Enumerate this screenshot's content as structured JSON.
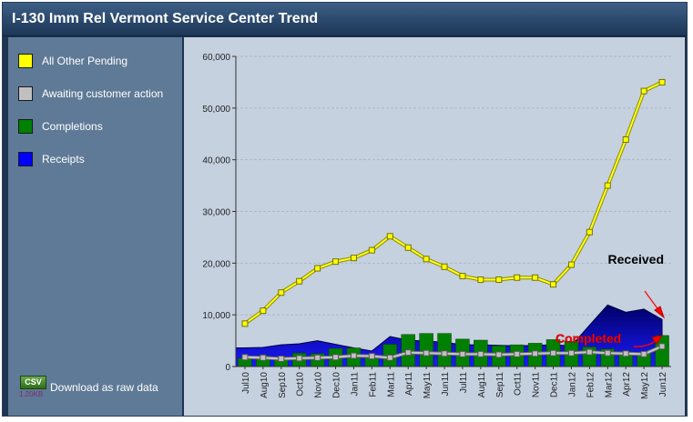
{
  "title": "I-130 Imm Rel Vermont Service Center Trend",
  "legend": [
    {
      "label": "All Other Pending",
      "color": "#ffff00"
    },
    {
      "label": "Awaiting customer action",
      "color": "#c0c0c0"
    },
    {
      "label": "Completions",
      "color": "#008000"
    },
    {
      "label": "Receipts",
      "color": "#0000ff"
    }
  ],
  "download": {
    "badge": "CSV",
    "size": "1.20KB",
    "label": "Download as raw data",
    "icon": "csv-file-icon"
  },
  "annotations": {
    "received": "Received",
    "completed": "Completed",
    "received_color": "#000000",
    "completed_color": "#ff0000"
  },
  "chart_data": {
    "type": "line",
    "categories": [
      "Jul10",
      "Aug10",
      "Sep10",
      "Oct10",
      "Nov10",
      "Dec10",
      "Jan11",
      "Feb11",
      "Mar11",
      "Apr11",
      "May11",
      "Jun11",
      "Jul11",
      "Aug11",
      "Sep11",
      "Oct11",
      "Nov11",
      "Dec11",
      "Jan12",
      "Feb12",
      "Mar12",
      "Apr12",
      "May12",
      "Jun12"
    ],
    "ylim": [
      0,
      60000
    ],
    "yticks": [
      "0",
      "10,000",
      "20,000",
      "30,000",
      "40,000",
      "50,000",
      "60,000"
    ],
    "grid": true,
    "series": [
      {
        "name": "All Other Pending",
        "type": "line",
        "color": "#ffff00",
        "values": [
          8300,
          10800,
          14300,
          16500,
          19000,
          20300,
          21000,
          22500,
          25200,
          23000,
          20800,
          19300,
          17500,
          16800,
          16800,
          17200,
          17200,
          15900,
          19700,
          26000,
          35000,
          43900,
          53300,
          55000
        ]
      },
      {
        "name": "Awaiting customer action",
        "type": "line",
        "color": "#c0c0c0",
        "values": [
          1800,
          1700,
          1500,
          1600,
          1700,
          1800,
          2100,
          2000,
          1700,
          2700,
          2600,
          2500,
          2400,
          2400,
          2300,
          2400,
          2500,
          2600,
          2600,
          2800,
          2600,
          2500,
          2400,
          3900
        ]
      },
      {
        "name": "Completions",
        "type": "bar",
        "color": "#008000",
        "values": [
          1600,
          2100,
          1900,
          2600,
          2500,
          3500,
          3600,
          2100,
          4300,
          6200,
          6400,
          6400,
          5300,
          5100,
          4000,
          4200,
          4500,
          5200,
          4900,
          3800,
          3400,
          2900,
          2500,
          6000
        ]
      },
      {
        "name": "Receipts",
        "type": "area",
        "color": "#0000ff",
        "values": [
          3600,
          3700,
          4200,
          4400,
          5000,
          4300,
          3600,
          3000,
          5800,
          5100,
          4900,
          4700,
          4200,
          4200,
          4100,
          4000,
          4100,
          4200,
          4000,
          8000,
          11900,
          10500,
          11100,
          9100
        ]
      }
    ]
  }
}
